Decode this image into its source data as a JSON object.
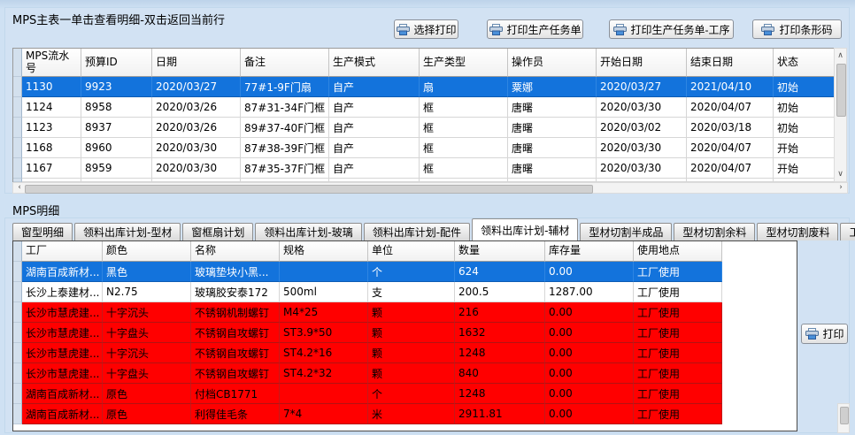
{
  "colors": {
    "page_bg": "#cfe1f3",
    "selected_row_bg": "#1373dc",
    "selected_row_text": "#ffffff",
    "alert_row_bg": "#ff0000",
    "grid_header_bg": "#f5f5f5"
  },
  "icons": {
    "scroll_up": "∧",
    "scroll_down": "∨",
    "scroll_left": "‹",
    "scroll_right": "›"
  },
  "top_panel": {
    "title": "MPS主表一单击查看明细-双击返回当前行",
    "buttons": [
      {
        "label": "选择打印"
      },
      {
        "label": "打印生产任务单"
      },
      {
        "label": "打印生产任务单-工序"
      },
      {
        "label": "打印条形码"
      }
    ],
    "table": {
      "columns": [
        "MPS流水号",
        "预算ID",
        "日期",
        "备注",
        "生产模式",
        "生产类型",
        "操作员",
        "开始日期",
        "结束日期",
        "状态"
      ],
      "rows": [
        {
          "state": "selected",
          "cells": [
            "1130",
            "9923",
            "2020/03/27",
            "77#1-9F门扇",
            "自产",
            "扇",
            "粟娜",
            "2020/03/27",
            "2021/04/10",
            "初始"
          ]
        },
        {
          "state": "normal",
          "cells": [
            "1124",
            "8958",
            "2020/03/26",
            "87#31-34F门框",
            "自产",
            "框",
            "唐曙",
            "2020/03/30",
            "2020/04/07",
            "初始"
          ]
        },
        {
          "state": "normal",
          "cells": [
            "1123",
            "8937",
            "2020/03/26",
            "89#37-40F门框",
            "自产",
            "框",
            "唐曙",
            "2020/03/02",
            "2020/03/18",
            "初始"
          ]
        },
        {
          "state": "normal",
          "cells": [
            "1168",
            "8960",
            "2020/03/30",
            "87#38-39F门框",
            "自产",
            "框",
            "唐曙",
            "2020/03/30",
            "2020/04/07",
            "开始"
          ]
        },
        {
          "state": "normal",
          "cells": [
            "1167",
            "8959",
            "2020/03/30",
            "87#35-37F门框",
            "自产",
            "框",
            "唐曙",
            "2020/03/30",
            "2020/04/07",
            "开始"
          ]
        }
      ]
    }
  },
  "bottom_panel": {
    "title": "MPS明细",
    "tabs": [
      {
        "label": "窗型明细",
        "active": false
      },
      {
        "label": "领料出库计划-型材",
        "active": false
      },
      {
        "label": "窗框扇计划",
        "active": false
      },
      {
        "label": "领料出库计划-玻璃",
        "active": false
      },
      {
        "label": "领料出库计划-配件",
        "active": false
      },
      {
        "label": "领料出库计划-辅材",
        "active": true
      },
      {
        "label": "型材切割半成品",
        "active": false
      },
      {
        "label": "型材切割余料",
        "active": false
      },
      {
        "label": "型材切割废料",
        "active": false
      },
      {
        "label": "工序",
        "active": false
      }
    ],
    "print_button": {
      "label": "打印"
    },
    "table": {
      "columns": [
        "工厂",
        "颜色",
        "名称",
        "规格",
        "单位",
        "数量",
        "库存量",
        "使用地点"
      ],
      "rows": [
        {
          "state": "selected",
          "cells": [
            "湖南百成新材...",
            "黑色",
            "玻璃垫块小黑...",
            "",
            "个",
            "624",
            "0.00",
            "工厂使用"
          ]
        },
        {
          "state": "normal",
          "cells": [
            "长沙上泰建材...",
            "N2.75",
            "玻璃胶安泰172",
            "500ml",
            "支",
            "200.5",
            "1287.00",
            "工厂使用"
          ]
        },
        {
          "state": "alert",
          "cells": [
            "长沙市慧虎建...",
            "十字沉头",
            "不锈钢机制螺钉",
            "M4*25",
            "颗",
            "216",
            "0.00",
            "工厂使用"
          ]
        },
        {
          "state": "alert",
          "cells": [
            "长沙市慧虎建...",
            "十字盘头",
            "不锈钢自攻螺钉",
            "ST3.9*50",
            "颗",
            "1632",
            "0.00",
            "工厂使用"
          ]
        },
        {
          "state": "alert",
          "cells": [
            "长沙市慧虎建...",
            "十字沉头",
            "不锈钢自攻螺钉",
            "ST4.2*16",
            "颗",
            "1248",
            "0.00",
            "工厂使用"
          ]
        },
        {
          "state": "alert",
          "cells": [
            "长沙市慧虎建...",
            "十字盘头",
            "不锈钢自攻螺钉",
            "ST4.2*32",
            "颗",
            "840",
            "0.00",
            "工厂使用"
          ]
        },
        {
          "state": "alert",
          "cells": [
            "湖南百成新材...",
            "原色",
            "付档CB1771",
            "",
            "个",
            "1248",
            "0.00",
            "工厂使用"
          ]
        },
        {
          "state": "alert",
          "cells": [
            "湖南百成新材...",
            "原色",
            "利得佳毛条",
            "7*4",
            "米",
            "2911.81",
            "0.00",
            "工厂使用"
          ]
        }
      ]
    }
  }
}
